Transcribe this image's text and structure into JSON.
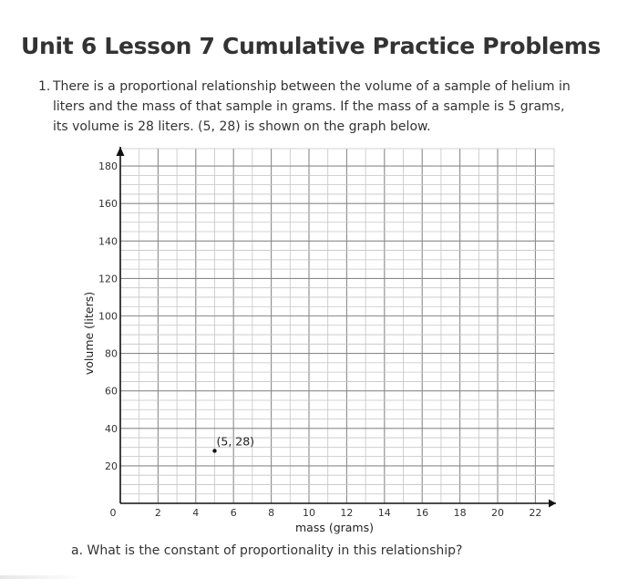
{
  "page": {
    "title": "Unit 6 Lesson 7 Cumulative Practice Problems"
  },
  "problem": {
    "number": "1.",
    "text": "There is a proportional relationship between the volume of a sample of helium in liters and the mass of that sample in grams. If the mass of a sample is 5 grams, its volume is 28 liters. (5, 28) is shown on the graph below.",
    "part_a": "a. What is the constant of proportionality in this relationship?"
  },
  "chart_data": {
    "type": "scatter",
    "xlabel": "mass (grams)",
    "ylabel": "volume (liters)",
    "xlim": [
      0,
      22.5
    ],
    "ylim": [
      0,
      180
    ],
    "x_minor_step": 1,
    "y_minor_step": 5,
    "x_major_step": 2,
    "y_major_step": 20,
    "x_ticks": [
      2,
      4,
      6,
      8,
      10,
      12,
      14,
      16,
      18,
      20,
      22
    ],
    "y_ticks": [
      20,
      40,
      60,
      80,
      100,
      120,
      140,
      160,
      180
    ],
    "origin_label": "0",
    "grid": true,
    "points": [
      {
        "x": 5,
        "y": 28,
        "label": "(5, 28)"
      }
    ],
    "colors": {
      "grid_minor": "#c4c4c4",
      "grid_major": "#8a8a8a",
      "axis": "#111111",
      "point": "#111111"
    }
  }
}
